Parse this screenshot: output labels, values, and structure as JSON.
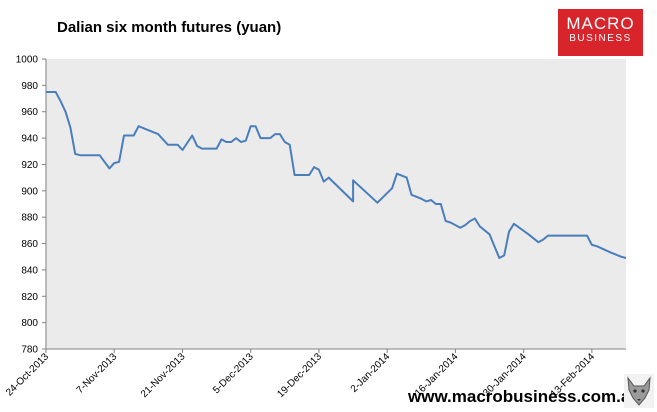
{
  "header": {
    "title": "Dalian six month futures (yuan)"
  },
  "logo": {
    "line1": "MACRO",
    "line2": "BUSINESS",
    "bg_color": "#d8242b"
  },
  "footer": {
    "website": "www.macrobusiness.com.au"
  },
  "chart_data": {
    "type": "line",
    "title": "Dalian six month futures (yuan)",
    "xlabel": "",
    "ylabel": "",
    "ylim": [
      780,
      1000
    ],
    "ytick_step": 20,
    "grid": false,
    "legend": "none",
    "plot_bg": "#ebebeb",
    "line_color": "#4a7ebb",
    "x_start": "2013-10-24",
    "x_end": "2014-02-20",
    "x_ticks": [
      "24-Oct-2013",
      "7-Nov-2013",
      "21-Nov-2013",
      "5-Dec-2013",
      "19-Dec-2013",
      "2-Jan-2014",
      "16-Jan-2014",
      "30-Jan-2014",
      "13-Feb-2014"
    ],
    "x_tick_dates": [
      "2013-10-24",
      "2013-11-07",
      "2013-11-21",
      "2013-12-05",
      "2013-12-19",
      "2014-01-02",
      "2014-01-16",
      "2014-01-30",
      "2014-02-13"
    ],
    "series": [
      {
        "points": [
          [
            "2013-10-24",
            975
          ],
          [
            "2013-10-25",
            975
          ],
          [
            "2013-10-26",
            975
          ],
          [
            "2013-10-27",
            968
          ],
          [
            "2013-10-28",
            960
          ],
          [
            "2013-10-29",
            948
          ],
          [
            "2013-10-30",
            928
          ],
          [
            "2013-10-31",
            927
          ],
          [
            "2013-11-04",
            927
          ],
          [
            "2013-11-05",
            922
          ],
          [
            "2013-11-06",
            917
          ],
          [
            "2013-11-07",
            921
          ],
          [
            "2013-11-08",
            922
          ],
          [
            "2013-11-09",
            942
          ],
          [
            "2013-11-11",
            942
          ],
          [
            "2013-11-12",
            949
          ],
          [
            "2013-11-14",
            946
          ],
          [
            "2013-11-16",
            943
          ],
          [
            "2013-11-18",
            935
          ],
          [
            "2013-11-20",
            935
          ],
          [
            "2013-11-21",
            931
          ],
          [
            "2013-11-23",
            942
          ],
          [
            "2013-11-24",
            934
          ],
          [
            "2013-11-25",
            932
          ],
          [
            "2013-11-28",
            932
          ],
          [
            "2013-11-29",
            939
          ],
          [
            "2013-11-30",
            937
          ],
          [
            "2013-12-01",
            937
          ],
          [
            "2013-12-02",
            940
          ],
          [
            "2013-12-03",
            937
          ],
          [
            "2013-12-04",
            938
          ],
          [
            "2013-12-05",
            949
          ],
          [
            "2013-12-06",
            949
          ],
          [
            "2013-12-07",
            940
          ],
          [
            "2013-12-09",
            940
          ],
          [
            "2013-12-10",
            943
          ],
          [
            "2013-12-11",
            943
          ],
          [
            "2013-12-12",
            937
          ],
          [
            "2013-12-13",
            935
          ],
          [
            "2013-12-14",
            912
          ],
          [
            "2013-12-17",
            912
          ],
          [
            "2013-12-18",
            918
          ],
          [
            "2013-12-19",
            916
          ],
          [
            "2013-12-20",
            907
          ],
          [
            "2013-12-21",
            910
          ],
          [
            "2013-12-26",
            892
          ],
          [
            "2013-12-26",
            908
          ],
          [
            "2013-12-31",
            891
          ],
          [
            "2014-01-03",
            902
          ],
          [
            "2014-01-04",
            913
          ],
          [
            "2014-01-06",
            910
          ],
          [
            "2014-01-07",
            897
          ],
          [
            "2014-01-09",
            894
          ],
          [
            "2014-01-10",
            892
          ],
          [
            "2014-01-11",
            893
          ],
          [
            "2014-01-12",
            890
          ],
          [
            "2014-01-13",
            890
          ],
          [
            "2014-01-14",
            877
          ],
          [
            "2014-01-15",
            876
          ],
          [
            "2014-01-17",
            872
          ],
          [
            "2014-01-18",
            874
          ],
          [
            "2014-01-19",
            877
          ],
          [
            "2014-01-20",
            879
          ],
          [
            "2014-01-21",
            873
          ],
          [
            "2014-01-23",
            867
          ],
          [
            "2014-01-25",
            849
          ],
          [
            "2014-01-26",
            851
          ],
          [
            "2014-01-27",
            869
          ],
          [
            "2014-01-28",
            875
          ],
          [
            "2014-01-31",
            867
          ],
          [
            "2014-02-02",
            861
          ],
          [
            "2014-02-03",
            863
          ],
          [
            "2014-02-04",
            866
          ],
          [
            "2014-02-12",
            866
          ],
          [
            "2014-02-13",
            859
          ],
          [
            "2014-02-14",
            858
          ],
          [
            "2014-02-17",
            853
          ],
          [
            "2014-02-19",
            850
          ],
          [
            "2014-02-20",
            849
          ]
        ]
      }
    ]
  }
}
